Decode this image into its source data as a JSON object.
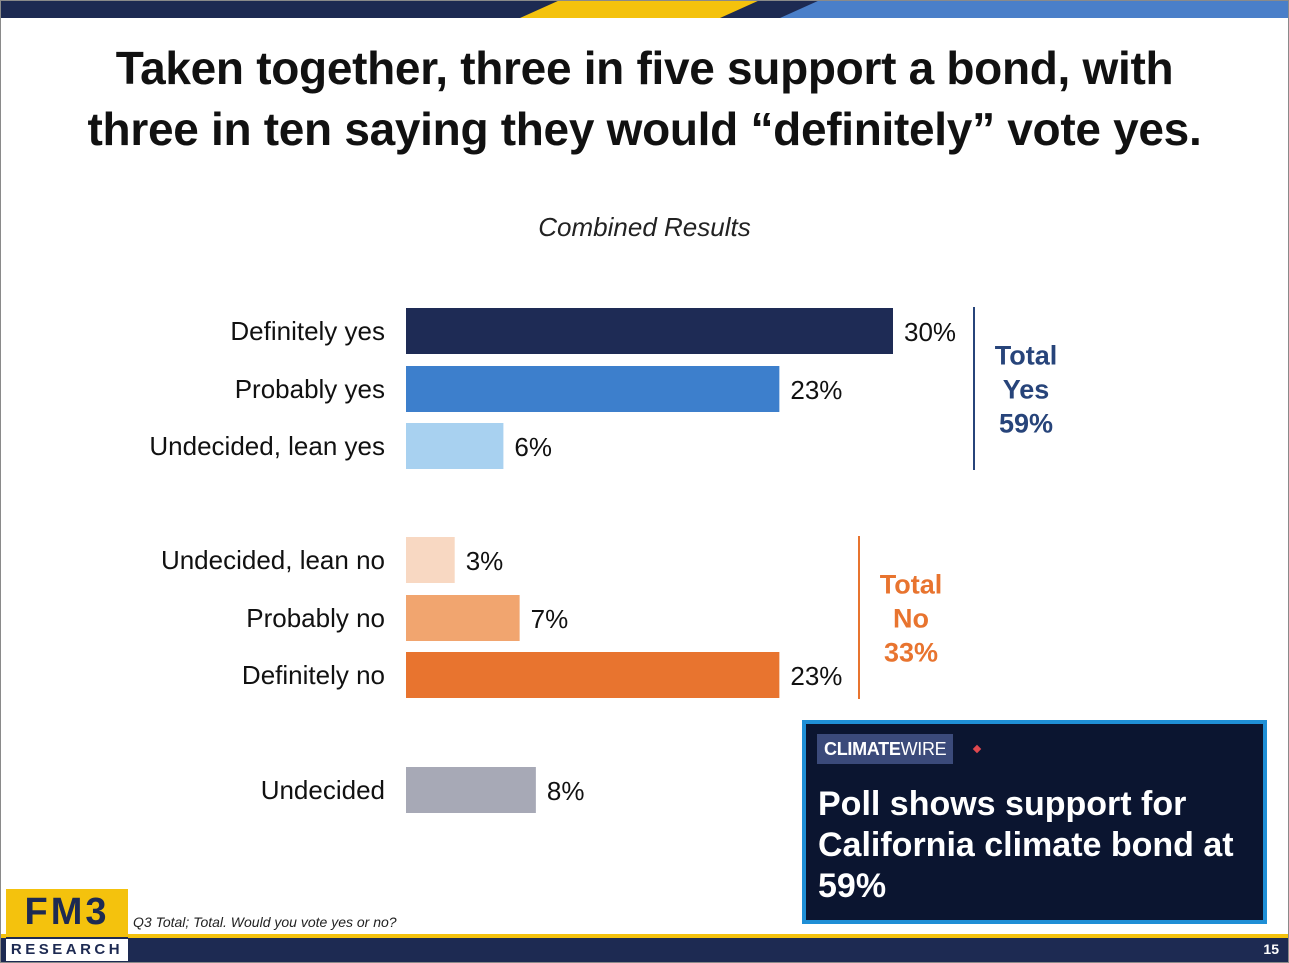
{
  "slide": {
    "title_line1": "Taken together, three in five support a bond, with",
    "title_line2": "three in ten saying they would “definitely” vote yes.",
    "footnote": "Q3 Total; Total. Would you vote yes or no?",
    "page_number": "15",
    "logo_main": "FM3",
    "logo_sub": "RESEARCH",
    "accent_colors": {
      "navy": "#1d2a52",
      "gold": "#f4c20d",
      "blue": "#4a7fc9"
    }
  },
  "chart_data": {
    "type": "bar",
    "orientation": "horizontal",
    "title": "Combined Results",
    "xlim": [
      0,
      30
    ],
    "grid": false,
    "categories": [
      "Definitely yes",
      "Probably yes",
      "Undecided, lean yes",
      "Undecided, lean no",
      "Probably no",
      "Definitely no",
      "Undecided"
    ],
    "values": [
      30,
      23,
      6,
      3,
      7,
      23,
      8
    ],
    "value_labels": [
      "30%",
      "23%",
      "6%",
      "3%",
      "7%",
      "23%",
      "8%"
    ],
    "colors": [
      "#1e2b55",
      "#3d7fcc",
      "#a8d1f0",
      "#f8d8c2",
      "#f1a56f",
      "#e8742f",
      "#a7a9b6"
    ],
    "groups": [
      {
        "label_line1": "Total",
        "label_line2": "Yes",
        "label_line3": "59%",
        "color": "#27447a",
        "members": [
          0,
          1,
          2
        ]
      },
      {
        "label_line1": "Total",
        "label_line2": "No",
        "label_line3": "33%",
        "color": "#e8742f",
        "members": [
          3,
          4,
          5
        ]
      }
    ]
  },
  "news_card": {
    "tag_bold": "CLIMATE",
    "tag_light": "WIRE",
    "headline_line1": "Poll shows support for",
    "headline_line2": "California climate bond at",
    "headline_line3": "59%"
  }
}
